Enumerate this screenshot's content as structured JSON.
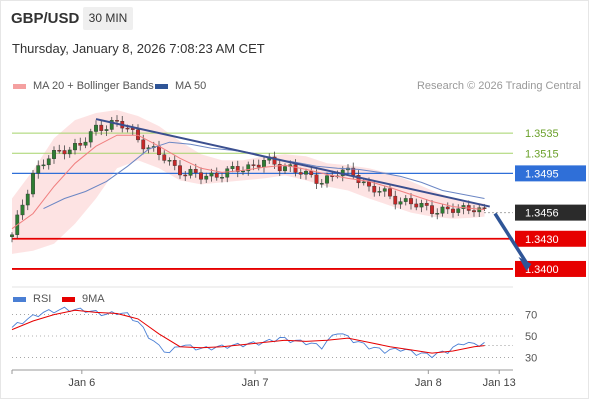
{
  "header": {
    "pair": "GBP/USD",
    "timeframe": "30 MIN",
    "timestamp": "Thursday, January 8, 2026 7:08:23 AM CET"
  },
  "legend": {
    "ma20": "MA 20 + Bollinger Bands",
    "ma50": "MA 50",
    "credit": "Research © 2026 Trading Central"
  },
  "rsi_legend": {
    "rsi": "RSI",
    "ma9": "9MA"
  },
  "colors": {
    "ma20": "#f08080",
    "ma50": "#2f5597",
    "bollinger": "#fde0e0",
    "resistance": "#a5d36a",
    "pivot": "#2f6fd8",
    "support": "#e60000",
    "trend": "#3b4f8f",
    "rsi": "#4a7fd4",
    "rsi_ma": "#e60000"
  },
  "chart_data": [
    {
      "type": "candlestick",
      "x_ticks": [
        "Jan 6",
        "Jan 7",
        "Jan 8",
        "Jan 13"
      ],
      "ylim": [
        1.3392,
        1.3558
      ],
      "current_price": "1.3456",
      "levels": [
        {
          "value": 1.3535,
          "label": "1.3535",
          "kind": "resistance"
        },
        {
          "value": 1.3515,
          "label": "1.3515",
          "kind": "resistance"
        },
        {
          "value": 1.3495,
          "label": "1.3495",
          "kind": "pivot"
        },
        {
          "value": 1.343,
          "label": "1.3430",
          "kind": "support"
        },
        {
          "value": 1.34,
          "label": "1.3400",
          "kind": "support"
        }
      ],
      "trendline": [
        [
          16,
          1.3549
        ],
        [
          91,
          1.3462
        ]
      ],
      "forecast_arrow": [
        [
          92,
          1.3455
        ],
        [
          98,
          1.34
        ]
      ],
      "close_anchors": [
        [
          0,
          1.3432
        ],
        [
          2,
          1.3465
        ],
        [
          4,
          1.3495
        ],
        [
          7,
          1.351
        ],
        [
          10,
          1.352
        ],
        [
          13,
          1.3522
        ],
        [
          16,
          1.354
        ],
        [
          19,
          1.3545
        ],
        [
          22,
          1.354
        ],
        [
          24,
          1.353
        ],
        [
          26,
          1.352
        ],
        [
          29,
          1.351
        ],
        [
          31,
          1.3502
        ],
        [
          33,
          1.3495
        ],
        [
          36,
          1.3492
        ],
        [
          39,
          1.3494
        ],
        [
          42,
          1.3497
        ],
        [
          45,
          1.3502
        ],
        [
          48,
          1.3507
        ],
        [
          51,
          1.3502
        ],
        [
          53,
          1.3502
        ],
        [
          56,
          1.3492
        ],
        [
          59,
          1.3488
        ],
        [
          62,
          1.3495
        ],
        [
          65,
          1.3496
        ],
        [
          68,
          1.348
        ],
        [
          71,
          1.3475
        ],
        [
          74,
          1.3468
        ],
        [
          77,
          1.3463
        ],
        [
          80,
          1.346
        ],
        [
          83,
          1.3457
        ],
        [
          86,
          1.346
        ],
        [
          88,
          1.3462
        ],
        [
          90,
          1.3456
        ]
      ],
      "ma20": [
        [
          0,
          1.344
        ],
        [
          4,
          1.3455
        ],
        [
          8,
          1.3482
        ],
        [
          12,
          1.3505
        ],
        [
          16,
          1.3522
        ],
        [
          20,
          1.3533
        ],
        [
          24,
          1.3533
        ],
        [
          28,
          1.3522
        ],
        [
          32,
          1.351
        ],
        [
          36,
          1.35
        ],
        [
          40,
          1.3496
        ],
        [
          44,
          1.3498
        ],
        [
          48,
          1.3501
        ],
        [
          52,
          1.3503
        ],
        [
          56,
          1.3499
        ],
        [
          60,
          1.3494
        ],
        [
          64,
          1.349
        ],
        [
          68,
          1.3487
        ],
        [
          72,
          1.3481
        ],
        [
          76,
          1.3474
        ],
        [
          80,
          1.3467
        ],
        [
          84,
          1.3462
        ],
        [
          88,
          1.346
        ],
        [
          90,
          1.3459
        ]
      ],
      "ma50": [
        [
          6,
          1.346
        ],
        [
          10,
          1.347
        ],
        [
          14,
          1.3477
        ],
        [
          18,
          1.3487
        ],
        [
          22,
          1.3502
        ],
        [
          26,
          1.3519
        ],
        [
          30,
          1.3526
        ],
        [
          34,
          1.3524
        ],
        [
          38,
          1.352
        ],
        [
          42,
          1.3518
        ],
        [
          46,
          1.3515
        ],
        [
          50,
          1.3509
        ],
        [
          54,
          1.3506
        ],
        [
          58,
          1.3502
        ],
        [
          62,
          1.35
        ],
        [
          66,
          1.3499
        ],
        [
          70,
          1.3496
        ],
        [
          74,
          1.3492
        ],
        [
          78,
          1.3486
        ],
        [
          82,
          1.3478
        ],
        [
          86,
          1.3474
        ],
        [
          90,
          1.347
        ]
      ],
      "bb_upper": [
        [
          0,
          1.347
        ],
        [
          4,
          1.3498
        ],
        [
          8,
          1.353
        ],
        [
          12,
          1.3548
        ],
        [
          16,
          1.3555
        ],
        [
          20,
          1.3558
        ],
        [
          24,
          1.3552
        ],
        [
          28,
          1.3542
        ],
        [
          32,
          1.3527
        ],
        [
          36,
          1.3514
        ],
        [
          40,
          1.3508
        ],
        [
          44,
          1.3508
        ],
        [
          48,
          1.3512
        ],
        [
          52,
          1.3514
        ],
        [
          56,
          1.3512
        ],
        [
          60,
          1.3505
        ],
        [
          64,
          1.3503
        ],
        [
          68,
          1.35
        ],
        [
          72,
          1.3495
        ],
        [
          76,
          1.3487
        ],
        [
          80,
          1.3478
        ],
        [
          84,
          1.347
        ],
        [
          88,
          1.3466
        ],
        [
          90,
          1.3465
        ]
      ],
      "bb_lower": [
        [
          0,
          1.3415
        ],
        [
          4,
          1.3418
        ],
        [
          8,
          1.3425
        ],
        [
          12,
          1.3445
        ],
        [
          16,
          1.347
        ],
        [
          20,
          1.35
        ],
        [
          24,
          1.3508
        ],
        [
          28,
          1.35
        ],
        [
          32,
          1.3488
        ],
        [
          36,
          1.3484
        ],
        [
          40,
          1.3486
        ],
        [
          44,
          1.3488
        ],
        [
          48,
          1.349
        ],
        [
          52,
          1.3493
        ],
        [
          56,
          1.3488
        ],
        [
          60,
          1.3482
        ],
        [
          64,
          1.3478
        ],
        [
          68,
          1.347
        ],
        [
          72,
          1.3463
        ],
        [
          76,
          1.3456
        ],
        [
          80,
          1.3452
        ],
        [
          84,
          1.345
        ],
        [
          88,
          1.3451
        ],
        [
          90,
          1.3452
        ]
      ]
    },
    {
      "type": "line",
      "title": "RSI",
      "ylim": [
        22,
        78
      ],
      "y_ticks": [
        70,
        50,
        30
      ],
      "rsi": [
        [
          0,
          58
        ],
        [
          3,
          66
        ],
        [
          6,
          72
        ],
        [
          10,
          75
        ],
        [
          14,
          74
        ],
        [
          18,
          70
        ],
        [
          20,
          72
        ],
        [
          22,
          70
        ],
        [
          24,
          63
        ],
        [
          26,
          50
        ],
        [
          28,
          40
        ],
        [
          30,
          34
        ],
        [
          32,
          42
        ],
        [
          34,
          40
        ],
        [
          36,
          38
        ],
        [
          40,
          40
        ],
        [
          44,
          42
        ],
        [
          48,
          44
        ],
        [
          51,
          48
        ],
        [
          53,
          46
        ],
        [
          56,
          44
        ],
        [
          59,
          40
        ],
        [
          62,
          54
        ],
        [
          65,
          46
        ],
        [
          68,
          40
        ],
        [
          71,
          36
        ],
        [
          74,
          38
        ],
        [
          77,
          34
        ],
        [
          80,
          32
        ],
        [
          83,
          36
        ],
        [
          86,
          44
        ],
        [
          88,
          42
        ],
        [
          90,
          43
        ]
      ],
      "ma9": [
        [
          0,
          56
        ],
        [
          4,
          64
        ],
        [
          8,
          70
        ],
        [
          12,
          74
        ],
        [
          16,
          72
        ],
        [
          20,
          71
        ],
        [
          24,
          66
        ],
        [
          28,
          52
        ],
        [
          32,
          40
        ],
        [
          36,
          39
        ],
        [
          40,
          40
        ],
        [
          44,
          42
        ],
        [
          48,
          44
        ],
        [
          52,
          46
        ],
        [
          56,
          45
        ],
        [
          60,
          46
        ],
        [
          64,
          48
        ],
        [
          68,
          44
        ],
        [
          72,
          40
        ],
        [
          76,
          37
        ],
        [
          80,
          34
        ],
        [
          84,
          36
        ],
        [
          88,
          40
        ],
        [
          90,
          41
        ]
      ]
    }
  ]
}
